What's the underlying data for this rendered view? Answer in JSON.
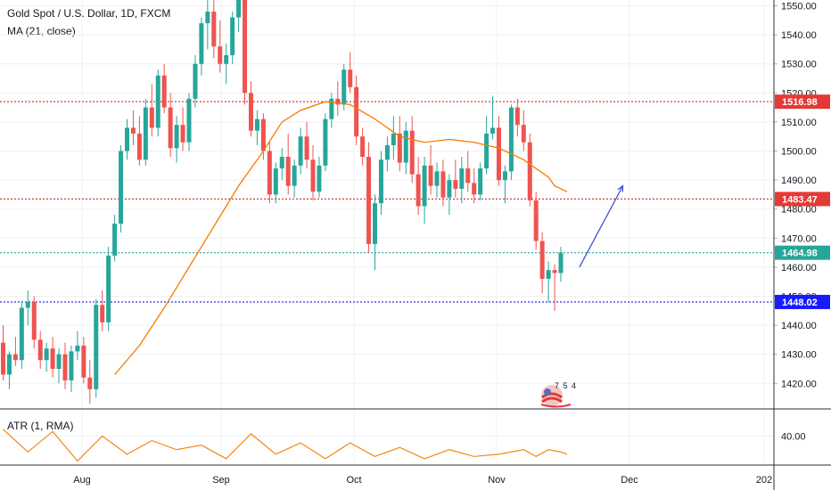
{
  "legend": {
    "symbol": "Gold Spot / U.S. Dollar, 1D, FXCM",
    "ma": "MA (21, close)",
    "atr": "ATR (1, RMA)"
  },
  "watermark_text": "7 5 4",
  "colors": {
    "up": "#26a69a",
    "down": "#ef5350",
    "ma": "#f57c00",
    "atr": "#f57c00",
    "arrow": "#3f51d8",
    "line_red": "#e53935",
    "line_teal": "#26a69a",
    "line_blue": "#1a1aff"
  },
  "chart_data": {
    "type": "candlestick",
    "x_ticks": [
      "Aug",
      "Sep",
      "Oct",
      "Nov",
      "Dec",
      "202"
    ],
    "y_ticks": [
      1420,
      1430,
      1440,
      1450,
      1460,
      1470,
      1480,
      1490,
      1500,
      1510,
      1520,
      1530,
      1540,
      1550
    ],
    "y_tick_labels": [
      "1420.00",
      "1430.00",
      "1440.00",
      "1450.00",
      "1460.00",
      "1470.00",
      "1480.00",
      "1490.00",
      "1500.00",
      "1510.00",
      "1520.00",
      "1530.00",
      "1540.00",
      "1550.00"
    ],
    "ylim": [
      1411.5,
      1552
    ],
    "price_levels": [
      {
        "value": 1516.98,
        "label": "1516.98",
        "color": "#e53935",
        "style": "dotted"
      },
      {
        "value": 1483.47,
        "label": "1483.47",
        "color": "#e53935",
        "style": "dotted"
      },
      {
        "value": 1464.98,
        "label": "1464.98",
        "color": "#26a69a",
        "style": "dotted"
      },
      {
        "value": 1448.02,
        "label": "1448.02",
        "color": "#1a1aff",
        "style": "dotted"
      }
    ],
    "ohlc": [
      [
        1434,
        1440,
        1421,
        1423
      ],
      [
        1423,
        1431,
        1418,
        1430
      ],
      [
        1430,
        1436,
        1426,
        1428
      ],
      [
        1428,
        1448,
        1425,
        1446
      ],
      [
        1446,
        1452,
        1440,
        1448
      ],
      [
        1448,
        1450,
        1432,
        1435
      ],
      [
        1435,
        1438,
        1425,
        1428
      ],
      [
        1428,
        1434,
        1424,
        1432
      ],
      [
        1432,
        1436,
        1422,
        1425
      ],
      [
        1425,
        1432,
        1420,
        1430
      ],
      [
        1430,
        1434,
        1418,
        1421
      ],
      [
        1421,
        1433,
        1417,
        1431
      ],
      [
        1431,
        1438,
        1428,
        1433
      ],
      [
        1433,
        1436,
        1420,
        1422
      ],
      [
        1422,
        1428,
        1413,
        1418
      ],
      [
        1418,
        1449,
        1415,
        1447
      ],
      [
        1447,
        1452,
        1438,
        1441
      ],
      [
        1441,
        1467,
        1438,
        1464
      ],
      [
        1464,
        1478,
        1462,
        1475
      ],
      [
        1475,
        1502,
        1472,
        1500
      ],
      [
        1500,
        1511,
        1497,
        1508
      ],
      [
        1508,
        1514,
        1502,
        1506
      ],
      [
        1506,
        1512,
        1495,
        1497
      ],
      [
        1497,
        1518,
        1495,
        1515
      ],
      [
        1515,
        1523,
        1505,
        1508
      ],
      [
        1508,
        1528,
        1505,
        1526
      ],
      [
        1526,
        1530,
        1513,
        1515
      ],
      [
        1515,
        1520,
        1498,
        1501
      ],
      [
        1501,
        1512,
        1496,
        1509
      ],
      [
        1509,
        1515,
        1500,
        1503
      ],
      [
        1503,
        1520,
        1500,
        1518
      ],
      [
        1518,
        1533,
        1515,
        1530
      ],
      [
        1530,
        1546,
        1526,
        1544
      ],
      [
        1544,
        1553,
        1535,
        1548
      ],
      [
        1548,
        1552,
        1532,
        1536
      ],
      [
        1536,
        1545,
        1527,
        1530
      ],
      [
        1530,
        1537,
        1523,
        1533
      ],
      [
        1533,
        1548,
        1530,
        1546
      ],
      [
        1546,
        1558,
        1541,
        1553
      ],
      [
        1553,
        1556,
        1516,
        1520
      ],
      [
        1520,
        1524,
        1505,
        1507
      ],
      [
        1507,
        1514,
        1502,
        1511
      ],
      [
        1511,
        1513,
        1497,
        1500
      ],
      [
        1500,
        1503,
        1482,
        1485
      ],
      [
        1485,
        1496,
        1482,
        1494
      ],
      [
        1494,
        1501,
        1490,
        1498
      ],
      [
        1498,
        1506,
        1485,
        1488
      ],
      [
        1488,
        1497,
        1484,
        1495
      ],
      [
        1495,
        1508,
        1492,
        1505
      ],
      [
        1505,
        1510,
        1494,
        1497
      ],
      [
        1497,
        1502,
        1483,
        1486
      ],
      [
        1486,
        1498,
        1484,
        1495
      ],
      [
        1495,
        1513,
        1493,
        1511
      ],
      [
        1511,
        1520,
        1508,
        1518
      ],
      [
        1518,
        1524,
        1512,
        1516
      ],
      [
        1516,
        1530,
        1514,
        1528
      ],
      [
        1528,
        1534,
        1520,
        1522
      ],
      [
        1522,
        1526,
        1502,
        1505
      ],
      [
        1505,
        1508,
        1495,
        1498
      ],
      [
        1498,
        1503,
        1465,
        1468
      ],
      [
        1468,
        1485,
        1459,
        1482
      ],
      [
        1482,
        1500,
        1478,
        1497
      ],
      [
        1497,
        1505,
        1493,
        1502
      ],
      [
        1502,
        1512,
        1497,
        1506
      ],
      [
        1506,
        1512,
        1493,
        1496
      ],
      [
        1496,
        1510,
        1492,
        1507
      ],
      [
        1507,
        1512,
        1489,
        1492
      ],
      [
        1492,
        1498,
        1478,
        1481
      ],
      [
        1481,
        1498,
        1475,
        1495
      ],
      [
        1495,
        1502,
        1485,
        1488
      ],
      [
        1488,
        1496,
        1484,
        1493
      ],
      [
        1493,
        1497,
        1481,
        1484
      ],
      [
        1484,
        1492,
        1478,
        1490
      ],
      [
        1490,
        1497,
        1484,
        1487
      ],
      [
        1487,
        1498,
        1482,
        1494
      ],
      [
        1494,
        1500,
        1486,
        1489
      ],
      [
        1489,
        1494,
        1482,
        1485
      ],
      [
        1485,
        1496,
        1483,
        1494
      ],
      [
        1494,
        1512,
        1492,
        1506
      ],
      [
        1506,
        1519,
        1504,
        1508
      ],
      [
        1508,
        1512,
        1488,
        1490
      ],
      [
        1490,
        1495,
        1482,
        1493
      ],
      [
        1493,
        1516,
        1490,
        1515
      ],
      [
        1515,
        1518,
        1505,
        1509
      ],
      [
        1509,
        1514,
        1500,
        1503
      ],
      [
        1503,
        1506,
        1481,
        1483
      ],
      [
        1483,
        1486,
        1466,
        1469
      ],
      [
        1469,
        1472,
        1451,
        1456
      ],
      [
        1456,
        1462,
        1448,
        1459
      ],
      [
        1459,
        1461,
        1445,
        1458
      ],
      [
        1458,
        1467,
        1455,
        1465
      ]
    ],
    "ma": [
      [
        18,
        1423
      ],
      [
        22,
        1433
      ],
      [
        26,
        1446
      ],
      [
        30,
        1460
      ],
      [
        34,
        1474
      ],
      [
        38,
        1488
      ],
      [
        42,
        1500
      ],
      [
        45,
        1510
      ],
      [
        48,
        1514
      ],
      [
        52,
        1517
      ],
      [
        56,
        1516
      ],
      [
        60,
        1511
      ],
      [
        64,
        1505
      ],
      [
        68,
        1503
      ],
      [
        72,
        1504
      ],
      [
        76,
        1503
      ],
      [
        80,
        1501
      ],
      [
        84,
        1497
      ],
      [
        88,
        1491
      ],
      [
        89,
        1488
      ],
      [
        91,
        1486
      ]
    ],
    "atr": [
      [
        0,
        43
      ],
      [
        4,
        33
      ],
      [
        8,
        42
      ],
      [
        12,
        29
      ],
      [
        16,
        40
      ],
      [
        20,
        32
      ],
      [
        24,
        38
      ],
      [
        28,
        34
      ],
      [
        32,
        36
      ],
      [
        36,
        30
      ],
      [
        40,
        41
      ],
      [
        44,
        32
      ],
      [
        48,
        37
      ],
      [
        52,
        30
      ],
      [
        56,
        37
      ],
      [
        60,
        31
      ],
      [
        64,
        35
      ],
      [
        68,
        30
      ],
      [
        72,
        34
      ],
      [
        76,
        31
      ],
      [
        80,
        32
      ],
      [
        84,
        34
      ],
      [
        86,
        31
      ],
      [
        88,
        34
      ],
      [
        90,
        33
      ],
      [
        91,
        32
      ]
    ],
    "atr_tick": {
      "value": 40,
      "label": "40.00"
    },
    "atr_ylim": [
      28,
      50
    ],
    "arrow": {
      "from": [
        93,
        1460
      ],
      "to": [
        100,
        1488
      ]
    }
  }
}
